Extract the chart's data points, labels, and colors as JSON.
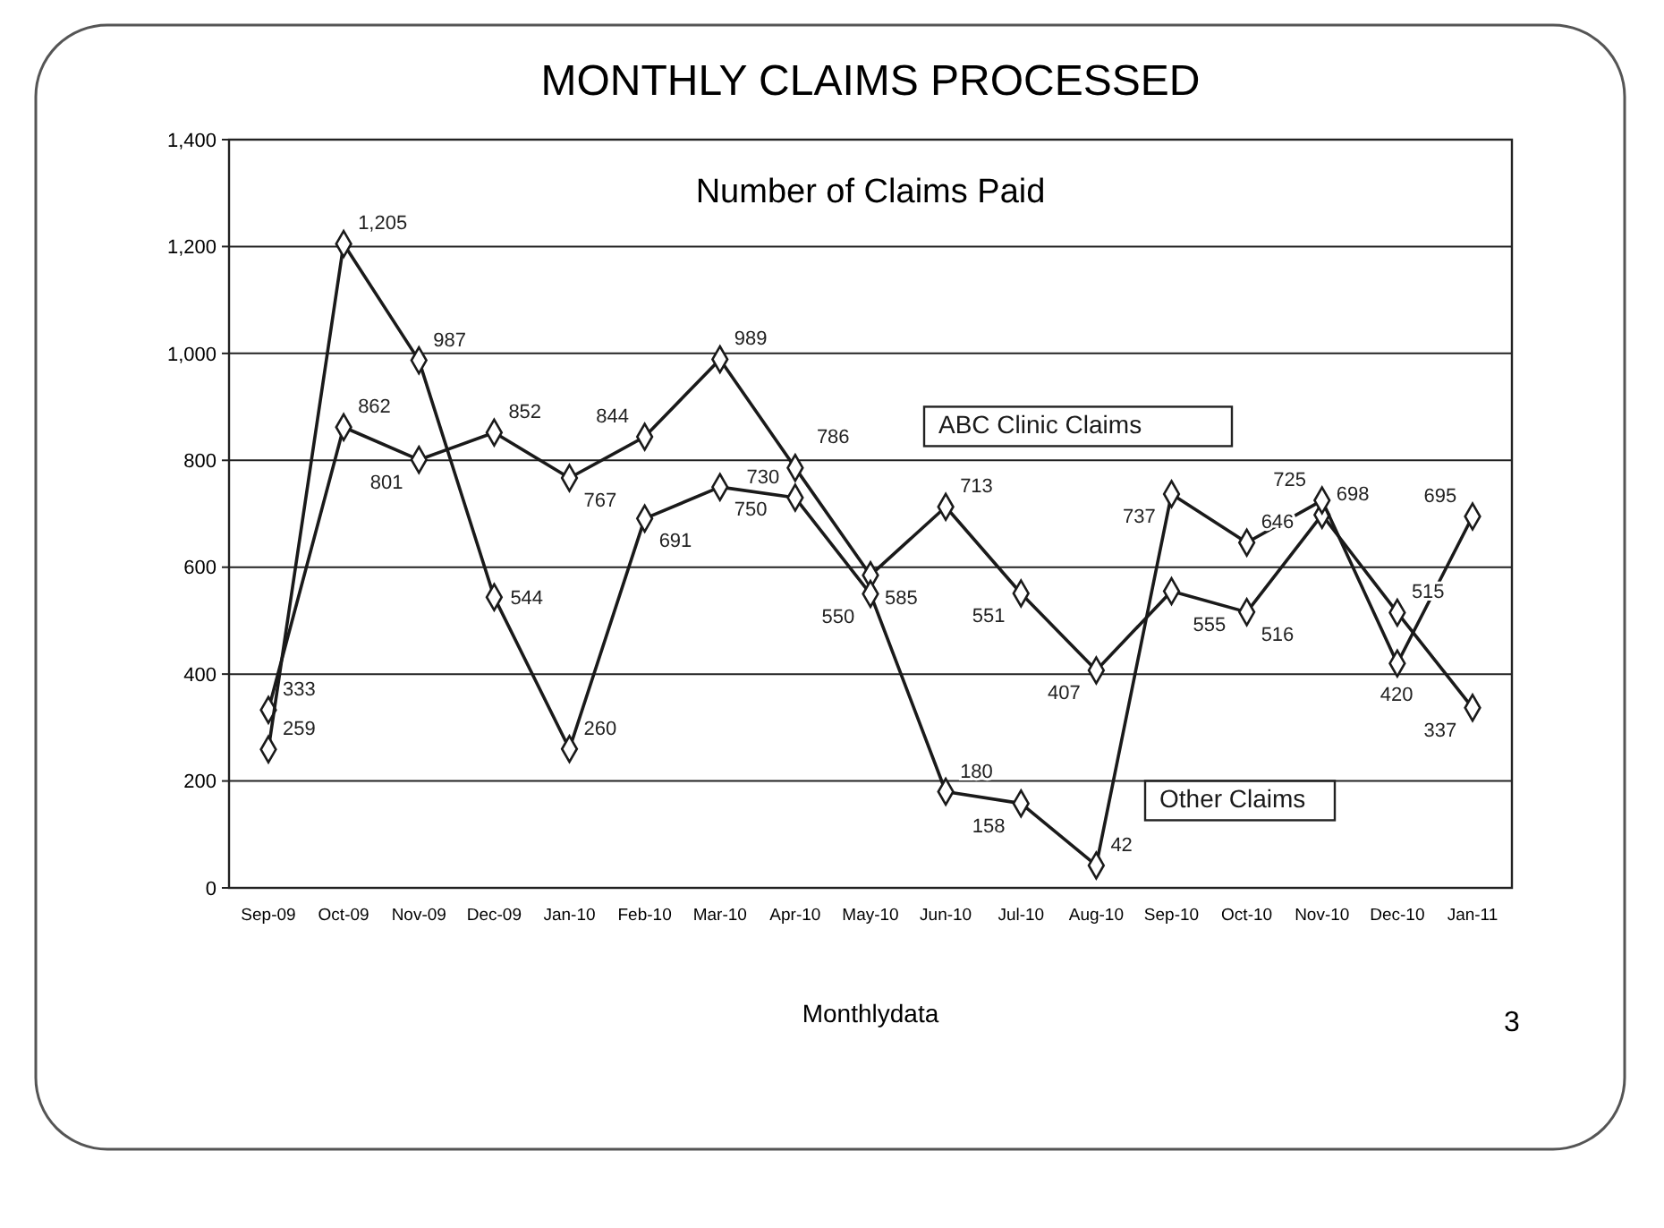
{
  "chart_data": {
    "type": "line",
    "title": "MONTHLY CLAIMS PROCESSED",
    "subtitle": "Number of Claims Paid",
    "xlabel": "Monthlydata",
    "annotations": [
      "3"
    ],
    "categories": [
      "Sep-09",
      "Oct-09",
      "Nov-09",
      "Dec-09",
      "Jan-10",
      "Feb-10",
      "Mar-10",
      "Apr-10",
      "May-10",
      "Jun-10",
      "Jul-10",
      "Aug-10",
      "Sep-10",
      "Oct-10",
      "Nov-10",
      "Dec-10",
      "Jan-11"
    ],
    "series": [
      {
        "name": "ABC Clinic Claims",
        "color": "#1a1a1a",
        "values": [
          333,
          862,
          801,
          852,
          767,
          844,
          989,
          786,
          585,
          713,
          551,
          407,
          555,
          516,
          698,
          515,
          337
        ],
        "value_labels": [
          "333",
          "862",
          "801",
          "852",
          "767",
          "844",
          "989",
          "786",
          "585",
          "713",
          "551",
          "407",
          "555",
          "516",
          "698",
          "515",
          "337"
        ]
      },
      {
        "name": "Other Claims",
        "color": "#1a1a1a",
        "values": [
          259,
          1205,
          987,
          544,
          260,
          691,
          750,
          730,
          550,
          180,
          158,
          42,
          737,
          646,
          725,
          420,
          695
        ],
        "value_labels": [
          "259",
          "1,205",
          "987",
          "544",
          "260",
          "691",
          "750",
          "730",
          "550",
          "180",
          "158",
          "42",
          "737",
          "646",
          "725",
          "420",
          "695"
        ]
      }
    ],
    "ylim": [
      0,
      1400
    ],
    "yticks": [
      {
        "value": 0,
        "label": "0"
      },
      {
        "value": 200,
        "label": "200"
      },
      {
        "value": 400,
        "label": "400"
      },
      {
        "value": 600,
        "label": "600"
      },
      {
        "value": 800,
        "label": "800"
      },
      {
        "value": 1000,
        "label": "1,000"
      },
      {
        "value": 1200,
        "label": "1,200"
      },
      {
        "value": 1400,
        "label": "1,400"
      }
    ],
    "grid": "y",
    "marker": "diamond",
    "line_style": "solid"
  }
}
